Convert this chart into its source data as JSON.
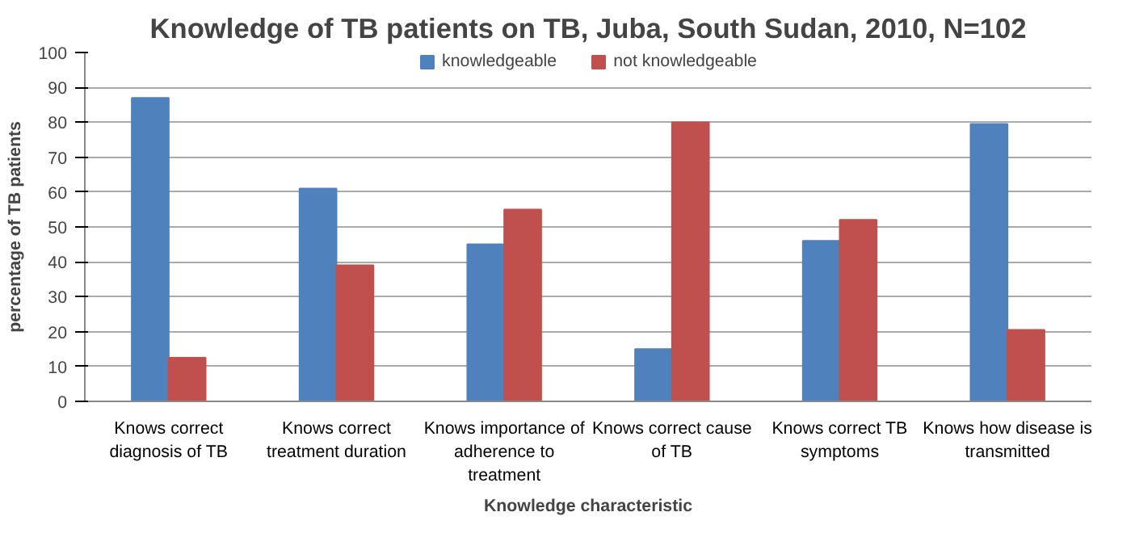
{
  "chart_data": {
    "type": "bar",
    "title": "Knowledge of TB patients on TB, Juba, South Sudan, 2010, N=102",
    "xlabel": "Knowledge characteristic",
    "ylabel": "percentage of TB patients",
    "categories": [
      "Knows correct diagnosis of TB",
      "Knows correct treatment duration",
      "Knows importance of adherence to treatment",
      "Knows correct cause of TB",
      "Knows correct TB symptoms",
      "Knows how disease is transmitted"
    ],
    "series": [
      {
        "name": "knowledgeable",
        "color": "#4f81bd",
        "values": [
          87,
          61,
          45,
          15,
          46,
          79.5
        ]
      },
      {
        "name": "not knowledgeable",
        "color": "#c0504d",
        "values": [
          12.5,
          39,
          55,
          80,
          52,
          20.5
        ]
      }
    ],
    "ylim": [
      0,
      100
    ],
    "yticks": [
      0,
      10,
      20,
      30,
      40,
      50,
      60,
      70,
      80,
      90,
      100
    ],
    "grid": "y",
    "legend": "top"
  }
}
